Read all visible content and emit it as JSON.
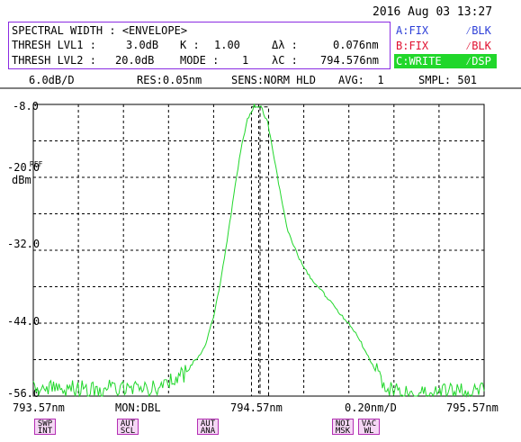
{
  "datetime": "2016 Aug 03 13:27",
  "info": {
    "title": "SPECTRAL WIDTH : <ENVELOPE>",
    "thresh1_label": "THRESH LVL1 :",
    "thresh1_value": "3.0dB",
    "k_label": "K :",
    "k_value": "1.00",
    "dl_label": "Δλ :",
    "dl_value": "0.076nm",
    "thresh2_label": "THRESH LVL2 :",
    "thresh2_value": "20.0dB",
    "mode_label": "MODE :",
    "mode_value": "1",
    "lc_label": "λC :",
    "lc_value": "794.576nm"
  },
  "traces": {
    "a": {
      "label": "A:FIX",
      "mode": "⁄BLK",
      "color": "#2d3fd8"
    },
    "b": {
      "label": "B:FIX",
      "mode": "⁄BLK",
      "color": "#e0102f"
    },
    "c": {
      "label": "C:WRITE",
      "mode": "⁄DSP",
      "color": "#21d72b"
    }
  },
  "status": {
    "scale": "6.0dB/D",
    "res": "RES:0.05nm",
    "sens": "SENS:NORM HLD",
    "avg": "AVG:  1",
    "smpl": "SMPL: 501"
  },
  "y_axis": {
    "ticks": [
      "-8.0",
      "-20.0",
      "-32.0",
      "-44.0",
      "-56.0"
    ],
    "ref": "REF",
    "unit": "dBm"
  },
  "x_axis": {
    "left": "793.57nm",
    "center": "794.57nm",
    "right": "795.57nm",
    "mon": "MON:DBL",
    "span": "0.20nm/D"
  },
  "softkeys": [
    {
      "line1": "SWP",
      "line2": "INT"
    },
    {
      "line1": "AUT",
      "line2": "SCL"
    },
    {
      "line1": "AUT",
      "line2": "ANA"
    },
    {
      "line1": "NOI",
      "line2": "MSK"
    },
    {
      "line1": "VAC",
      "line2": "WL"
    }
  ],
  "chart_data": {
    "type": "line",
    "xlabel": "",
    "ylabel": "dBm",
    "xlim": [
      793.57,
      795.57
    ],
    "ylim": [
      -56.0,
      -8.0
    ],
    "series": [
      {
        "color": "#21d72b",
        "x": [
          793.57,
          793.75,
          793.95,
          794.15,
          794.25,
          794.33,
          794.37,
          794.4,
          794.43,
          794.46,
          794.49,
          794.52,
          794.55,
          794.58,
          794.61,
          794.64,
          794.67,
          794.7,
          794.75,
          794.8,
          794.9,
          795.0,
          795.05,
          795.1,
          795.15,
          795.2,
          795.57
        ],
        "y": [
          -54.8,
          -54.9,
          -54.8,
          -54.5,
          -52.0,
          -48.0,
          -43.0,
          -37.5,
          -30.5,
          -23.0,
          -15.5,
          -10.5,
          -8.2,
          -8.4,
          -11.0,
          -17.0,
          -23.5,
          -29.0,
          -33.5,
          -36.5,
          -41.0,
          -45.5,
          -49.0,
          -52.5,
          -55.0,
          -55.6,
          -55.2
        ]
      }
    ],
    "markers": {
      "lambda_c": 794.576,
      "delta_lambda": 0.076
    }
  }
}
